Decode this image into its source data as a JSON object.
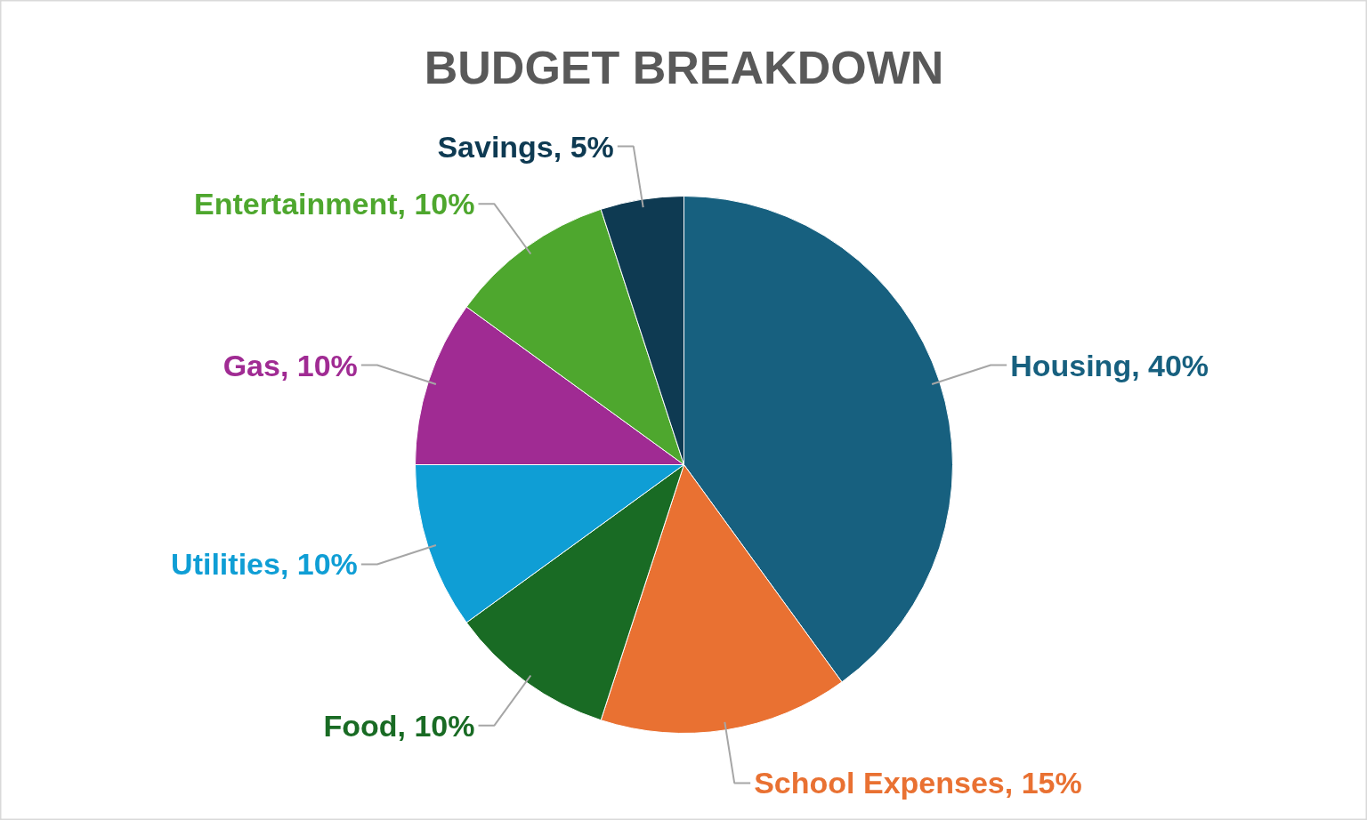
{
  "chart_data": {
    "type": "pie",
    "title": "BUDGET BREAKDOWN",
    "categories": [
      "Housing",
      "School Expenses",
      "Food",
      "Utilities",
      "Gas",
      "Entertainment",
      "Savings"
    ],
    "values": [
      40,
      15,
      10,
      10,
      10,
      10,
      5
    ],
    "value_labels": [
      "40%",
      "15%",
      "10%",
      "10%",
      "10%",
      "10%",
      "5%"
    ],
    "colors": [
      "#17607f",
      "#e97132",
      "#196b24",
      "#0f9ed5",
      "#a02b93",
      "#4ea72e",
      "#0e3a52"
    ]
  }
}
